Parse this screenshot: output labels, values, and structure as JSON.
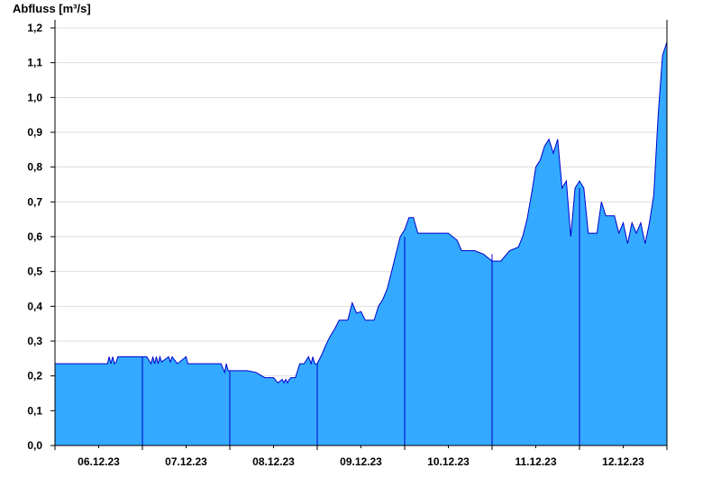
{
  "chart_data": {
    "type": "area",
    "ylabel": "Abfluss [m³/s]",
    "xlabel": "",
    "title": "",
    "ylim": [
      0,
      1.2
    ],
    "yticks": [
      "0,0",
      "0,1",
      "0,2",
      "0,3",
      "0,4",
      "0,5",
      "0,6",
      "0,7",
      "0,8",
      "0,9",
      "1,0",
      "1,1",
      "1,2"
    ],
    "xlim": [
      0,
      7
    ],
    "x_tick_labels": [
      "06.12.23",
      "07.12.23",
      "08.12.23",
      "09.12.23",
      "10.12.23",
      "11.12.23",
      "12.12.23"
    ],
    "grid": "horizontal",
    "fill_color": "#33aaff",
    "line_color": "#0000cc",
    "series": [
      {
        "x": [
          0.0,
          0.25,
          0.5,
          0.6,
          0.62,
          0.64,
          0.66,
          0.68,
          0.7,
          0.72,
          1.0,
          1.05,
          1.1,
          1.12,
          1.14,
          1.16,
          1.18,
          1.2,
          1.22,
          1.3,
          1.32,
          1.34,
          1.4,
          1.5,
          1.52,
          1.54,
          1.6,
          1.7,
          1.8,
          1.9,
          1.94,
          1.96,
          1.98,
          2.0,
          2.1,
          2.2,
          2.3,
          2.4,
          2.45,
          2.5,
          2.55,
          2.6,
          2.62,
          2.64,
          2.66,
          2.68,
          2.7,
          2.75,
          2.8,
          2.85,
          2.9,
          2.93,
          2.95,
          2.97,
          3.0,
          3.05,
          3.1,
          3.15,
          3.2,
          3.25,
          3.3,
          3.35,
          3.4,
          3.45,
          3.5,
          3.55,
          3.6,
          3.65,
          3.7,
          3.75,
          3.8,
          3.85,
          3.9,
          3.95,
          4.0,
          4.05,
          4.1,
          4.15,
          4.2,
          4.25,
          4.3,
          4.35,
          4.4,
          4.5,
          4.6,
          4.65,
          4.7,
          4.8,
          4.9,
          5.0,
          5.1,
          5.2,
          5.3,
          5.35,
          5.4,
          5.45,
          5.5,
          5.55,
          5.6,
          5.65,
          5.7,
          5.75,
          5.8,
          5.85,
          5.9,
          5.95,
          6.0,
          6.05,
          6.1,
          6.15,
          6.2,
          6.25,
          6.3,
          6.35,
          6.4,
          6.45,
          6.5,
          6.55,
          6.6,
          6.65,
          6.7,
          6.75,
          6.8,
          6.85,
          6.9,
          6.95,
          7.0
        ],
        "values": [
          0.235,
          0.235,
          0.235,
          0.235,
          0.255,
          0.235,
          0.255,
          0.235,
          0.24,
          0.255,
          0.255,
          0.255,
          0.235,
          0.255,
          0.235,
          0.255,
          0.235,
          0.255,
          0.24,
          0.255,
          0.24,
          0.255,
          0.235,
          0.255,
          0.235,
          0.235,
          0.235,
          0.235,
          0.235,
          0.235,
          0.21,
          0.235,
          0.215,
          0.215,
          0.215,
          0.215,
          0.21,
          0.195,
          0.195,
          0.195,
          0.18,
          0.19,
          0.18,
          0.19,
          0.18,
          0.19,
          0.195,
          0.195,
          0.235,
          0.235,
          0.255,
          0.235,
          0.255,
          0.235,
          0.235,
          0.26,
          0.29,
          0.315,
          0.335,
          0.36,
          0.36,
          0.36,
          0.41,
          0.38,
          0.385,
          0.36,
          0.36,
          0.36,
          0.4,
          0.42,
          0.45,
          0.5,
          0.55,
          0.6,
          0.62,
          0.655,
          0.655,
          0.61,
          0.61,
          0.61,
          0.61,
          0.61,
          0.61,
          0.61,
          0.59,
          0.56,
          0.56,
          0.56,
          0.55,
          0.53,
          0.53,
          0.56,
          0.57,
          0.6,
          0.65,
          0.72,
          0.8,
          0.82,
          0.86,
          0.88,
          0.84,
          0.88,
          0.74,
          0.76,
          0.6,
          0.74,
          0.76,
          0.74,
          0.61,
          0.61,
          0.61,
          0.7,
          0.66,
          0.66,
          0.66,
          0.61,
          0.64,
          0.58,
          0.64,
          0.61,
          0.64,
          0.58,
          0.64,
          0.72,
          0.95,
          1.12,
          1.16
        ]
      }
    ]
  }
}
